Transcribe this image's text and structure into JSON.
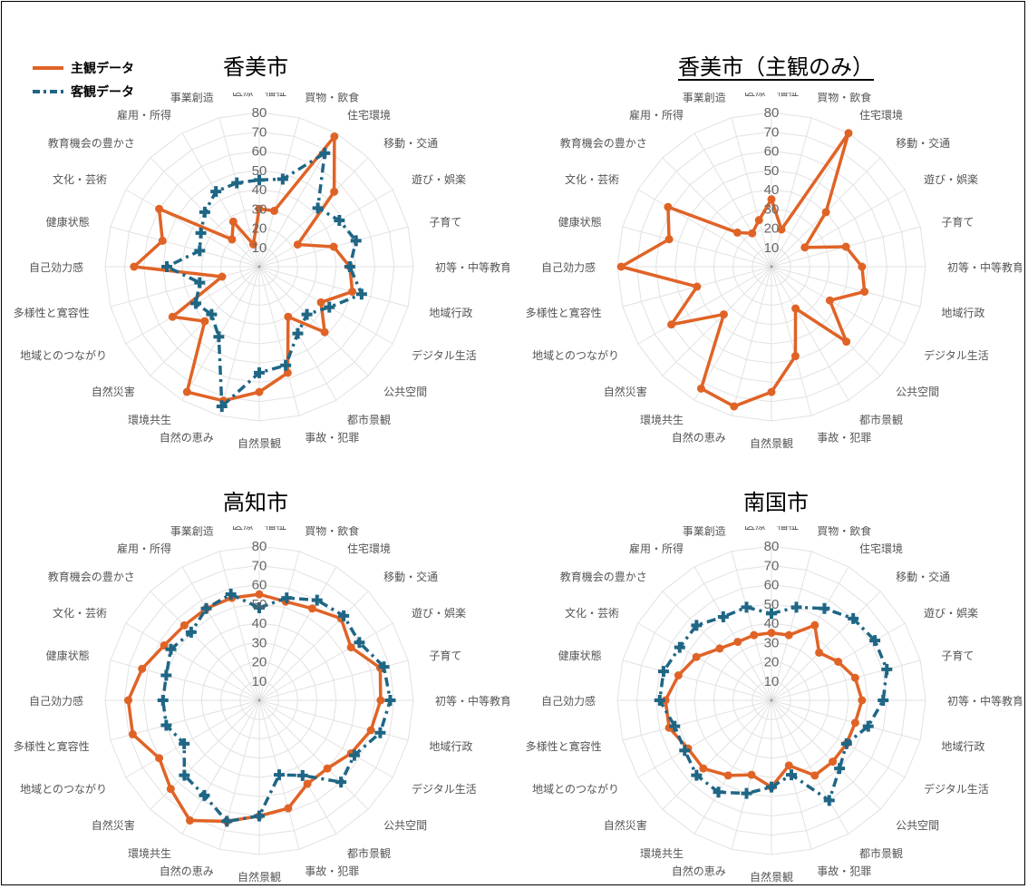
{
  "colors": {
    "subjective": "#e06326",
    "objective": "#1f6685",
    "grid": "#e2e2e2"
  },
  "legend": [
    {
      "label": "主観データ",
      "style": "solid",
      "color": "#e06326"
    },
    {
      "label": "客観データ",
      "style": "dash-dot",
      "color": "#1f6685"
    }
  ],
  "panels": [
    {
      "title": "香美市",
      "underline": false
    },
    {
      "title": "香美市（主観のみ）",
      "underline": true
    },
    {
      "title": "高知市",
      "underline": false
    },
    {
      "title": "南国市",
      "underline": false
    }
  ],
  "chart_data": [
    {
      "type": "radar",
      "title": "香美市",
      "categories": [
        "医療・福祉",
        "買物・飲食",
        "住宅環境",
        "移動・交通",
        "遊び・娯楽",
        "子育て",
        "初等・中等教育",
        "地域行政",
        "デジタル生活",
        "公共空間",
        "都市景観",
        "事故・犯罪",
        "自然景観",
        "自然の恵み",
        "環境共生",
        "自然災害",
        "地域とのつながり",
        "多様性と寛容性",
        "自己効力感",
        "健康状態",
        "文化・芸術",
        "教育機会の豊かさ",
        "雇用・所得",
        "事業創造"
      ],
      "ticks": [
        10,
        20,
        30,
        40,
        50,
        60,
        70,
        80
      ],
      "range": [
        0,
        80
      ],
      "series": [
        {
          "name": "主観データ",
          "values": [
            30,
            30,
            78,
            55,
            23,
            40,
            47,
            50,
            37,
            48,
            30,
            57,
            65,
            72,
            75,
            40,
            52,
            20,
            65,
            52,
            60,
            20,
            27,
            12
          ]
        },
        {
          "name": "客観データ",
          "values": [
            45,
            47,
            68,
            43,
            48,
            52,
            47,
            55,
            42,
            35,
            40,
            53,
            55,
            75,
            42,
            35,
            38,
            32,
            48,
            32,
            35,
            40,
            45,
            45
          ]
        }
      ]
    },
    {
      "type": "radar",
      "title": "香美市（主観のみ）",
      "categories": [
        "医療・福祉",
        "買物・飲食",
        "住宅環境",
        "移動・交通",
        "遊び・娯楽",
        "子育て",
        "初等・中等教育",
        "地域行政",
        "デジタル生活",
        "公共空間",
        "都市景観",
        "事故・犯罪",
        "自然景観",
        "自然の恵み",
        "環境共生",
        "自然災害",
        "地域とのつながり",
        "多様性と寛容性",
        "自己効力感",
        "健康状態",
        "文化・芸術",
        "教育機会の豊かさ",
        "雇用・所得",
        "事業創造"
      ],
      "ticks": [
        10,
        20,
        30,
        40,
        50,
        60,
        70,
        80
      ],
      "range": [
        0,
        80
      ],
      "series": [
        {
          "name": "主観データ",
          "values": [
            35,
            20,
            80,
            40,
            20,
            40,
            47,
            50,
            35,
            55,
            25,
            48,
            65,
            75,
            73,
            35,
            60,
            40,
            78,
            55,
            62,
            25,
            20,
            25
          ]
        }
      ]
    },
    {
      "type": "radar",
      "title": "高知市",
      "categories": [
        "医療・福祉",
        "買物・飲食",
        "住宅環境",
        "移動・交通",
        "遊び・娯楽",
        "子育て",
        "初等・中等教育",
        "地域行政",
        "デジタル生活",
        "公共空間",
        "都市景観",
        "事故・犯罪",
        "自然景観",
        "自然の恵み",
        "環境共生",
        "自然災害",
        "地域とのつながり",
        "多様性と寛容性",
        "自己効力感",
        "健康状態",
        "文化・芸術",
        "教育機会の豊かさ",
        "雇用・所得",
        "事業創造"
      ],
      "ticks": [
        10,
        20,
        30,
        40,
        50,
        60,
        70,
        80
      ],
      "range": [
        0,
        80
      ],
      "series": [
        {
          "name": "主観データ",
          "values": [
            55,
            53,
            55,
            60,
            55,
            65,
            63,
            60,
            55,
            50,
            50,
            58,
            60,
            65,
            72,
            65,
            60,
            68,
            68,
            63,
            57,
            55,
            55,
            55
          ]
        },
        {
          "name": "客観データ",
          "values": [
            48,
            55,
            60,
            62,
            60,
            67,
            68,
            65,
            57,
            60,
            45,
            40,
            60,
            65,
            57,
            55,
            45,
            50,
            50,
            50,
            53,
            50,
            55,
            57
          ]
        }
      ]
    },
    {
      "type": "radar",
      "title": "南国市",
      "categories": [
        "医療・福祉",
        "買物・飲食",
        "住宅環境",
        "移動・交通",
        "遊び・娯楽",
        "子育て",
        "初等・中等教育",
        "地域行政",
        "デジタル生活",
        "公共空間",
        "都市景観",
        "事故・犯罪",
        "自然景観",
        "自然の恵み",
        "環境共生",
        "自然災害",
        "地域とのつながり",
        "多様性と寛容性",
        "自己効力感",
        "健康状態",
        "文化・芸術",
        "教育機会の豊かさ",
        "雇用・所得",
        "事業創造"
      ],
      "ticks": [
        10,
        20,
        30,
        40,
        50,
        60,
        70,
        80
      ],
      "range": [
        0,
        80
      ],
      "series": [
        {
          "name": "主観データ",
          "values": [
            35,
            35,
            45,
            35,
            40,
            45,
            47,
            45,
            45,
            45,
            45,
            35,
            45,
            40,
            45,
            50,
            50,
            55,
            55,
            50,
            45,
            38,
            35,
            35
          ]
        },
        {
          "name": "客観データ",
          "values": [
            45,
            50,
            55,
            60,
            62,
            62,
            58,
            52,
            45,
            50,
            60,
            40,
            45,
            50,
            55,
            55,
            52,
            52,
            58,
            58,
            55,
            55,
            50,
            50
          ]
        }
      ]
    }
  ]
}
